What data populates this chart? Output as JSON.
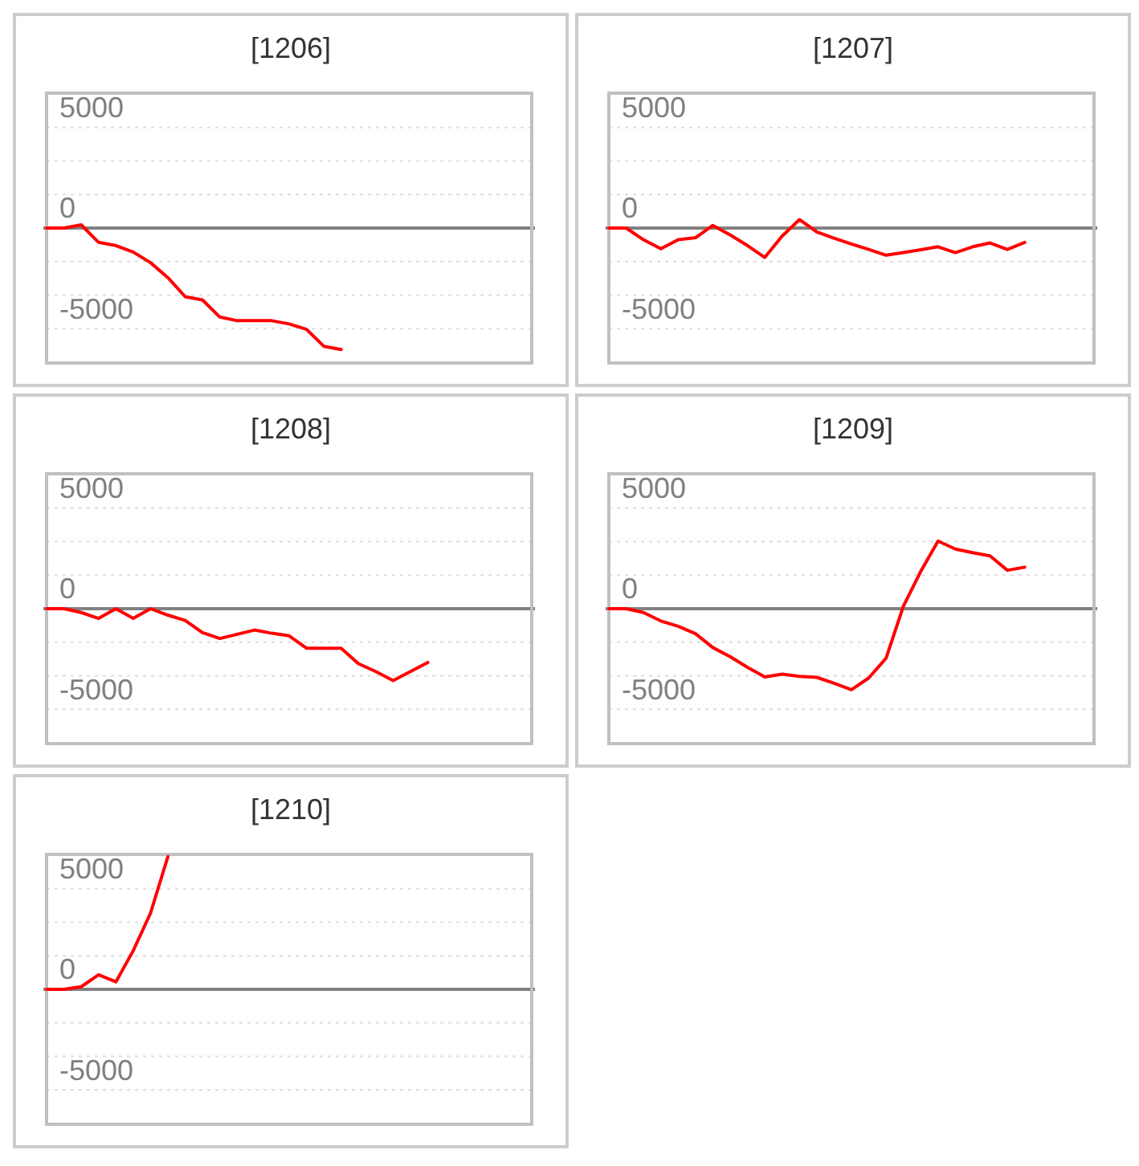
{
  "chart_data": [
    {
      "type": "line",
      "title": "[1206]",
      "categories": [
        null,
        null,
        null,
        null,
        null,
        null,
        null,
        null,
        null,
        null,
        null,
        null,
        null,
        null,
        null,
        null,
        null,
        null,
        null,
        null,
        null,
        null,
        null,
        null,
        null,
        null,
        null,
        null,
        null
      ],
      "series": [
        {
          "color": "#ff0000",
          "values": [
            0,
            0,
            160,
            -710,
            -870,
            -1190,
            -1720,
            -2460,
            -3410,
            -3570,
            -4420,
            -4600,
            -4600,
            -4600,
            -4760,
            -5030,
            -5870,
            -6030,
            null,
            null,
            null,
            null,
            null,
            null,
            null,
            null,
            null,
            null,
            null
          ]
        }
      ],
      "ylim": [
        -6700,
        6700
      ],
      "yticks": [
        -5000,
        {
          "value": -3333,
          "label": null
        },
        {
          "value": -1667,
          "label": null
        },
        0,
        {
          "value": 1667,
          "label": null
        },
        {
          "value": 3333,
          "label": null
        },
        5000
      ],
      "tick_labels": "y",
      "grid": "y",
      "ref_lines": [
        {
          "axis": "y",
          "value": 0,
          "color": "#808080"
        }
      ]
    },
    {
      "type": "line",
      "title": "[1207]",
      "categories": [
        null,
        null,
        null,
        null,
        null,
        null,
        null,
        null,
        null,
        null,
        null,
        null,
        null,
        null,
        null,
        null,
        null,
        null,
        null,
        null,
        null,
        null,
        null,
        null,
        null,
        null,
        null,
        null,
        null
      ],
      "series": [
        {
          "color": "#ff0000",
          "values": [
            0,
            0,
            -580,
            -1030,
            -580,
            -480,
            130,
            -340,
            -870,
            -1460,
            -400,
            420,
            -190,
            -500,
            -790,
            -1060,
            -1350,
            -1220,
            -1080,
            -930,
            -1220,
            -930,
            -740,
            -1060,
            -710,
            null,
            null,
            null,
            null
          ]
        }
      ],
      "ylim": [
        -6700,
        6700
      ],
      "yticks": [
        -5000,
        {
          "value": -3333,
          "label": null
        },
        {
          "value": -1667,
          "label": null
        },
        0,
        {
          "value": 1667,
          "label": null
        },
        {
          "value": 3333,
          "label": null
        },
        5000
      ],
      "tick_labels": "y",
      "grid": "y",
      "ref_lines": [
        {
          "axis": "y",
          "value": 0,
          "color": "#808080"
        }
      ]
    },
    {
      "type": "line",
      "title": "[1208]",
      "categories": [
        null,
        null,
        null,
        null,
        null,
        null,
        null,
        null,
        null,
        null,
        null,
        null,
        null,
        null,
        null,
        null,
        null,
        null,
        null,
        null,
        null,
        null,
        null,
        null,
        null,
        null,
        null,
        null,
        null
      ],
      "series": [
        {
          "color": "#ff0000",
          "values": [
            0,
            0,
            -190,
            -480,
            0,
            -480,
            0,
            -320,
            -580,
            -1190,
            -1480,
            -1270,
            -1060,
            -1220,
            -1350,
            -1960,
            -1960,
            -1960,
            -2730,
            -3120,
            -3570,
            -3120,
            -2670,
            null,
            null,
            null,
            null,
            null,
            null
          ]
        }
      ],
      "ylim": [
        -6700,
        6700
      ],
      "yticks": [
        -5000,
        {
          "value": -3333,
          "label": null
        },
        {
          "value": -1667,
          "label": null
        },
        0,
        {
          "value": 1667,
          "label": null
        },
        {
          "value": 3333,
          "label": null
        },
        5000
      ],
      "tick_labels": "y",
      "grid": "y",
      "ref_lines": [
        {
          "axis": "y",
          "value": 0,
          "color": "#808080"
        }
      ]
    },
    {
      "type": "line",
      "title": "[1209]",
      "categories": [
        null,
        null,
        null,
        null,
        null,
        null,
        null,
        null,
        null,
        null,
        null,
        null,
        null,
        null,
        null,
        null,
        null,
        null,
        null,
        null,
        null,
        null,
        null,
        null,
        null,
        null,
        null,
        null,
        null
      ],
      "series": [
        {
          "color": "#ff0000",
          "values": [
            0,
            0,
            -190,
            -610,
            -870,
            -1240,
            -1930,
            -2380,
            -2910,
            -3390,
            -3250,
            -3360,
            -3410,
            -3700,
            -4020,
            -3440,
            -2460,
            130,
            1850,
            3360,
            2960,
            2780,
            2620,
            1910,
            2060,
            null,
            null,
            null,
            null
          ]
        }
      ],
      "ylim": [
        -6700,
        6700
      ],
      "yticks": [
        -5000,
        {
          "value": -3333,
          "label": null
        },
        {
          "value": -1667,
          "label": null
        },
        0,
        {
          "value": 1667,
          "label": null
        },
        {
          "value": 3333,
          "label": null
        },
        5000
      ],
      "tick_labels": "y",
      "grid": "y",
      "ref_lines": [
        {
          "axis": "y",
          "value": 0,
          "color": "#808080"
        }
      ]
    },
    {
      "type": "line",
      "title": "[1210]",
      "categories": [
        null,
        null,
        null,
        null,
        null,
        null,
        null,
        null,
        null,
        null,
        null,
        null,
        null,
        null,
        null,
        null,
        null,
        null,
        null,
        null,
        null,
        null,
        null,
        null,
        null,
        null,
        null,
        null,
        null
      ],
      "series": [
        {
          "color": "#ff0000",
          "values": [
            0,
            0,
            130,
            720,
            370,
            1920,
            3790,
            6590,
            null,
            null,
            null,
            null,
            null,
            null,
            null,
            null,
            null,
            null,
            null,
            null,
            null,
            null,
            null,
            null,
            null,
            null,
            null,
            null,
            null
          ]
        }
      ],
      "ylim": [
        -6700,
        6700
      ],
      "yticks": [
        -5000,
        {
          "value": -3333,
          "label": null
        },
        {
          "value": -1667,
          "label": null
        },
        0,
        {
          "value": 1667,
          "label": null
        },
        {
          "value": 3333,
          "label": null
        },
        5000
      ],
      "tick_labels": "y",
      "grid": "y",
      "ref_lines": [
        {
          "axis": "y",
          "value": 0,
          "color": "#808080"
        }
      ]
    }
  ]
}
